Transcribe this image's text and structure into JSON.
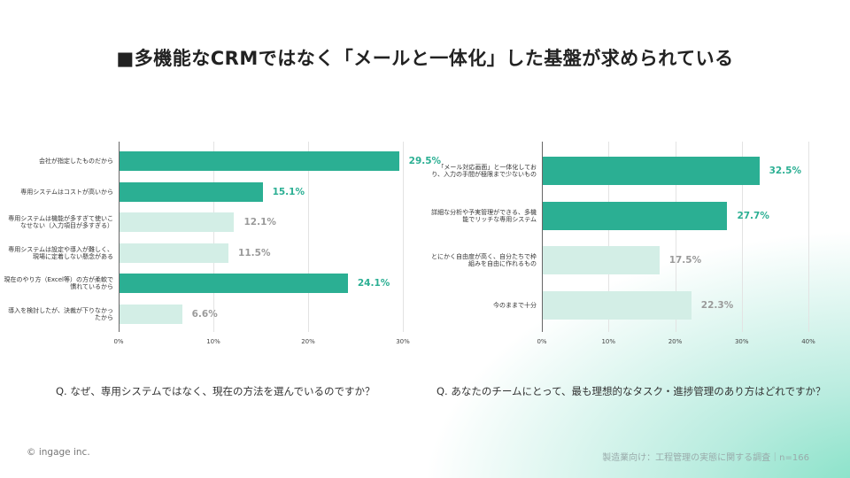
{
  "title": "■多機能なCRMではなく「メールと一体化」した基盤が求められている",
  "colors": {
    "highlight": "#2baf93",
    "muted": "#d3eee6",
    "highlight_text": "#2baf93",
    "muted_text": "#9a9a9a"
  },
  "chart_data": [
    {
      "type": "bar",
      "orientation": "horizontal",
      "question": "Q. なぜ、専用システムではなく、現在の方法を選んでいるのですか？",
      "categories": [
        "会社が指定したものだから",
        "専用システムはコストが高いから",
        "専用システムは機能が多すぎて使いこなせない（入力項目が多すぎる）",
        "専用システムは設定や導入が難しく、現場に定着しない懸念がある",
        "現在のやり方（Excel等）の方が柔軟で慣れているから",
        "導入を検討したが、決裁が下りなかったから"
      ],
      "values": [
        29.5,
        15.1,
        12.1,
        11.5,
        24.1,
        6.6
      ],
      "value_labels": [
        "29.5%",
        "15.1%",
        "12.1%",
        "11.5%",
        "24.1%",
        "6.6%"
      ],
      "highlight": [
        true,
        true,
        false,
        false,
        true,
        false
      ],
      "xlim": [
        0,
        30
      ],
      "ticks": [
        "0%",
        "10%",
        "20%",
        "30%"
      ],
      "tick_values": [
        0,
        10,
        20,
        30
      ]
    },
    {
      "type": "bar",
      "orientation": "horizontal",
      "question": "Q. あなたのチームにとって、最も理想的なタスク・進捗管理のあり方はどれですか？",
      "categories": [
        "「メール対応画面」と一体化しており、入力の手間が極限まで少ないもの",
        "詳細な分析や予実管理ができる、多機能でリッチな専用システム",
        "とにかく自由度が高く、自分たちで枠組みを自由に作れるもの",
        "今のままで十分"
      ],
      "values": [
        32.5,
        27.7,
        17.5,
        22.3
      ],
      "value_labels": [
        "32.5%",
        "27.7%",
        "17.5%",
        "22.3%"
      ],
      "highlight": [
        true,
        true,
        false,
        false
      ],
      "xlim": [
        0,
        40
      ],
      "ticks": [
        "0%",
        "10%",
        "20%",
        "30%",
        "40%"
      ],
      "tick_values": [
        0,
        10,
        20,
        30,
        40
      ]
    }
  ],
  "footer": {
    "copyright": "© ingage inc.",
    "source": "製造業向け：工程管理の実態に関する調査｜n=166"
  }
}
